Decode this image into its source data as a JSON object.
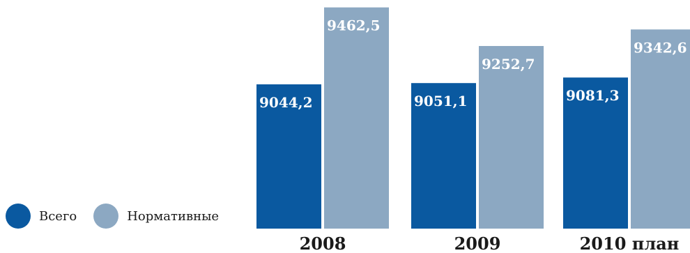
{
  "chart_data": {
    "type": "bar",
    "categories": [
      "2008",
      "2009",
      "2010 план"
    ],
    "series": [
      {
        "name": "Всего",
        "values": [
          9044.2,
          9051.1,
          9081.3
        ],
        "labels": [
          "9044,2",
          "9051,1",
          "9081,3"
        ],
        "color": "#0a59a0"
      },
      {
        "name": "Нормативные",
        "values": [
          9462.5,
          9252.7,
          9342.6
        ],
        "labels": [
          "9462,5",
          "9252,7",
          "9342,6"
        ],
        "color": "#8ca8c2"
      }
    ],
    "ylim": [
      8260,
      9480
    ],
    "legend_position": "bottom-left"
  }
}
